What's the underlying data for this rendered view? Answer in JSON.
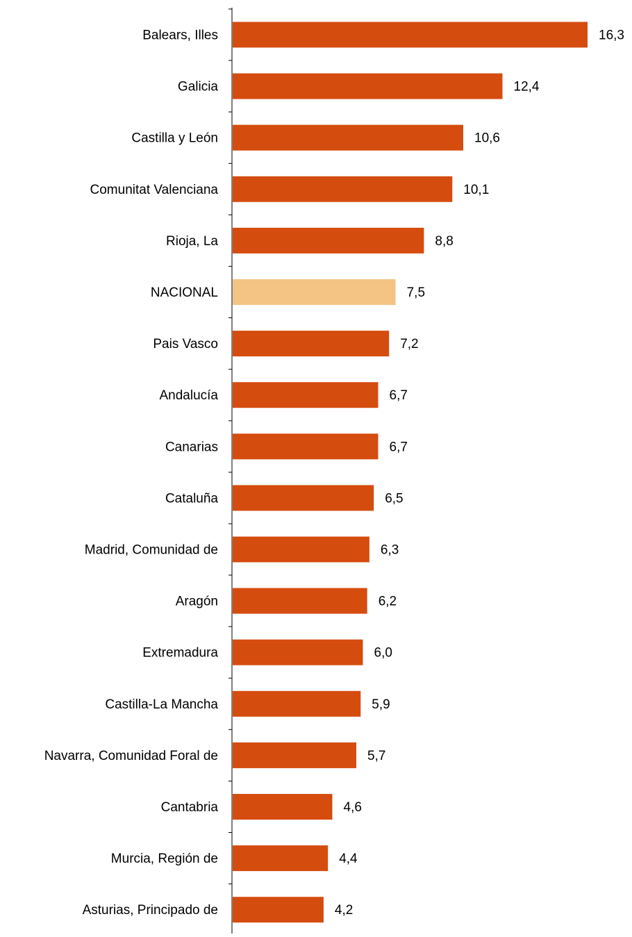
{
  "chart_data": {
    "type": "bar",
    "orientation": "horizontal",
    "title": "",
    "xlabel": "",
    "ylabel": "",
    "grid": false,
    "legend": "none",
    "xlim": [
      0,
      16.3
    ],
    "categories": [
      "Balears, Illes",
      "Galicia",
      "Castilla y León",
      "Comunitat Valenciana",
      "Rioja, La",
      "NACIONAL",
      "Pais Vasco",
      "Andalucía",
      "Canarias",
      "Cataluña",
      "Madrid, Comunidad de",
      "Aragón",
      "Extremadura",
      "Castilla-La Mancha",
      "Navarra, Comunidad Foral de",
      "Cantabria",
      "Murcia, Región de",
      "Asturias, Principado de"
    ],
    "values": [
      16.3,
      12.4,
      10.6,
      10.1,
      8.8,
      7.5,
      7.2,
      6.7,
      6.7,
      6.5,
      6.3,
      6.2,
      6.0,
      5.9,
      5.7,
      4.6,
      4.4,
      4.2
    ],
    "value_labels": [
      "16,3",
      "12,4",
      "10,6",
      "10,1",
      "8,8",
      "7,5",
      "7,2",
      "6,7",
      "6,7",
      "6,5",
      "6,3",
      "6,2",
      "6,0",
      "5,9",
      "5,7",
      "4,6",
      "4,4",
      "4,2"
    ],
    "bar_color": "#d54c0f",
    "highlight_category": "NACIONAL",
    "highlight_color": "#f3c484",
    "axis_color": "#000000"
  }
}
